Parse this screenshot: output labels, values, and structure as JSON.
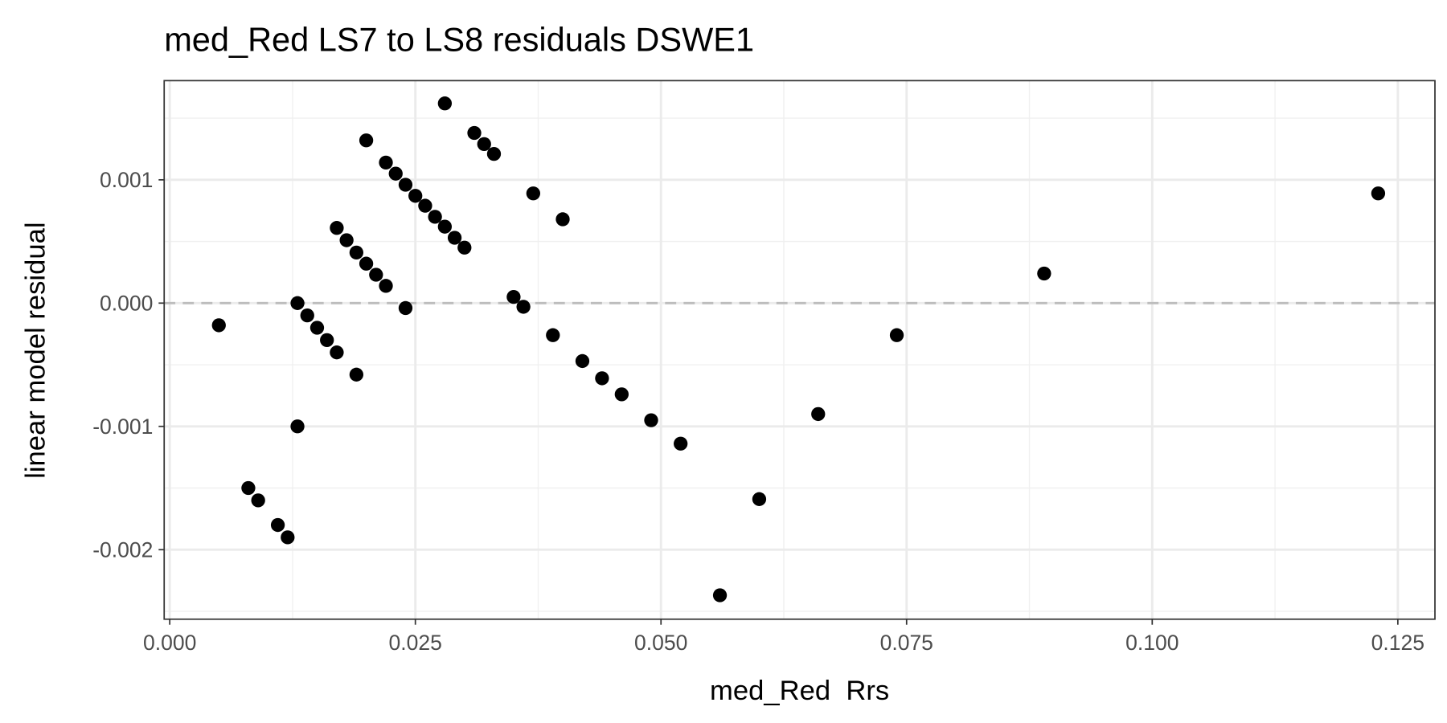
{
  "chart_data": {
    "type": "scatter",
    "title": "med_Red LS7 to LS8 residuals DSWE1",
    "xlabel": "med_Red  Rrs",
    "ylabel": "linear model residual",
    "xlim": [
      -0.0006,
      0.1285
    ],
    "ylim": [
      -0.00256,
      0.00181
    ],
    "x_ticks": [
      0,
      0.025,
      0.05,
      0.075,
      0.1,
      0.125
    ],
    "x_tick_labels": [
      "0.000",
      "0.025",
      "0.050",
      "0.075",
      "0.100",
      "0.125"
    ],
    "y_ticks": [
      -0.002,
      -0.001,
      0,
      0.001
    ],
    "y_tick_labels": [
      "-0.002",
      "-0.001",
      "0.000",
      "0.001"
    ],
    "grid": true,
    "reference_line": {
      "y": 0,
      "style": "dashed",
      "color": "#bdbdbd"
    },
    "point_color": "#000000",
    "points": [
      [
        0.005,
        -0.00018
      ],
      [
        0.008,
        -0.0015
      ],
      [
        0.009,
        -0.0016
      ],
      [
        0.011,
        -0.0018
      ],
      [
        0.012,
        -0.0019
      ],
      [
        0.013,
        0.0
      ],
      [
        0.013,
        -0.001
      ],
      [
        0.014,
        -0.0001
      ],
      [
        0.015,
        -0.0002
      ],
      [
        0.016,
        -0.0003
      ],
      [
        0.017,
        -0.0004
      ],
      [
        0.019,
        -0.00058
      ],
      [
        0.017,
        0.00061
      ],
      [
        0.018,
        0.00051
      ],
      [
        0.019,
        0.00041
      ],
      [
        0.02,
        0.00032
      ],
      [
        0.021,
        0.00023
      ],
      [
        0.022,
        0.00014
      ],
      [
        0.024,
        -4e-05
      ],
      [
        0.02,
        0.00132
      ],
      [
        0.022,
        0.00114
      ],
      [
        0.023,
        0.00105
      ],
      [
        0.024,
        0.00096
      ],
      [
        0.025,
        0.00087
      ],
      [
        0.026,
        0.00079
      ],
      [
        0.027,
        0.0007
      ],
      [
        0.028,
        0.00062
      ],
      [
        0.029,
        0.00053
      ],
      [
        0.03,
        0.00045
      ],
      [
        0.028,
        0.00162
      ],
      [
        0.031,
        0.00138
      ],
      [
        0.032,
        0.00129
      ],
      [
        0.033,
        0.00121
      ],
      [
        0.035,
        5e-05
      ],
      [
        0.036,
        -3e-05
      ],
      [
        0.037,
        0.00089
      ],
      [
        0.04,
        0.00068
      ],
      [
        0.039,
        -0.00026
      ],
      [
        0.042,
        -0.00047
      ],
      [
        0.044,
        -0.00061
      ],
      [
        0.046,
        -0.00074
      ],
      [
        0.049,
        -0.00095
      ],
      [
        0.052,
        -0.00114
      ],
      [
        0.056,
        -0.00237
      ],
      [
        0.06,
        -0.00159
      ],
      [
        0.066,
        -0.0009
      ],
      [
        0.074,
        -0.00026
      ],
      [
        0.089,
        0.00024
      ],
      [
        0.123,
        0.00089
      ]
    ]
  }
}
